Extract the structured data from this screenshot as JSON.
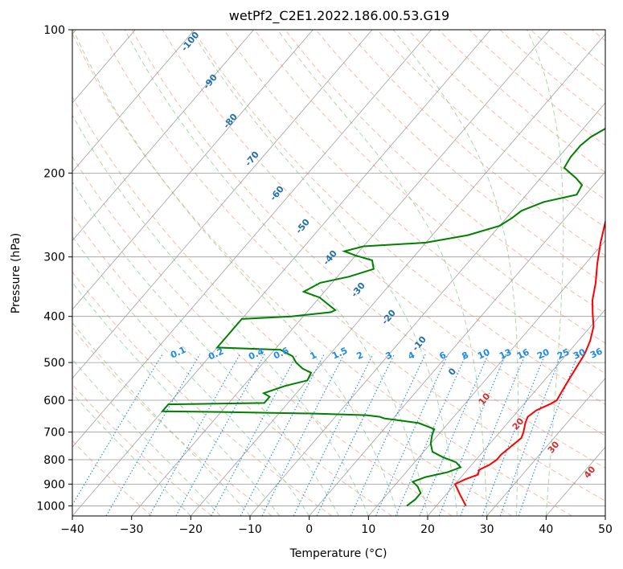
{
  "chart_data": {
    "type": "line",
    "title": "wetPf2_C2E1.2022.186.00.53.G19",
    "xlabel": "Temperature (°C)",
    "ylabel": "Pressure (hPa)",
    "xlim": [
      -40,
      50
    ],
    "ylim": [
      1050,
      100
    ],
    "y_scale": "log",
    "grid": true,
    "x_ticks": [
      -40,
      -30,
      -20,
      -10,
      0,
      10,
      20,
      30,
      40,
      50
    ],
    "y_ticks": [
      100,
      200,
      300,
      400,
      500,
      600,
      700,
      800,
      900,
      1000
    ],
    "series": [
      {
        "color": "#ff0000",
        "points": [
          [
            25.0,
            1000
          ],
          [
            22.5,
            950
          ],
          [
            20.0,
            900
          ],
          [
            21.0,
            880
          ],
          [
            22.5,
            860
          ],
          [
            22.0,
            840
          ],
          [
            23.0,
            820
          ],
          [
            23.5,
            800
          ],
          [
            23.5,
            780
          ],
          [
            24.0,
            750
          ],
          [
            24.5,
            720
          ],
          [
            24.0,
            700
          ],
          [
            23.0,
            670
          ],
          [
            22.5,
            650
          ],
          [
            23.0,
            630
          ],
          [
            24.5,
            610
          ],
          [
            25.0,
            600
          ],
          [
            24.5,
            570
          ],
          [
            24.0,
            540
          ],
          [
            23.5,
            510
          ],
          [
            23.0,
            480
          ],
          [
            22.0,
            450
          ],
          [
            20.5,
            420
          ],
          [
            18.5,
            395
          ],
          [
            16.5,
            370
          ],
          [
            14.5,
            340
          ],
          [
            12.0,
            310
          ],
          [
            9.5,
            280
          ],
          [
            7.0,
            250
          ],
          [
            5.5,
            230
          ],
          [
            4.0,
            210
          ],
          [
            2.5,
            190
          ],
          [
            1.0,
            170
          ],
          [
            0.0,
            150
          ],
          [
            -0.5,
            140
          ],
          [
            -1.0,
            130
          ],
          [
            -0.5,
            120
          ],
          [
            -0.5,
            110
          ],
          [
            0.0,
            100
          ]
        ]
      },
      {
        "color": "#008000",
        "points": [
          [
            15.0,
            1000
          ],
          [
            15.5,
            970
          ],
          [
            15.5,
            940
          ],
          [
            14.0,
            910
          ],
          [
            12.5,
            890
          ],
          [
            14.0,
            870
          ],
          [
            17.0,
            850
          ],
          [
            18.5,
            830
          ],
          [
            17.0,
            810
          ],
          [
            14.0,
            790
          ],
          [
            11.5,
            770
          ],
          [
            10.0,
            740
          ],
          [
            9.0,
            710
          ],
          [
            8.5,
            690
          ],
          [
            5.0,
            670
          ],
          [
            -1.5,
            655
          ],
          [
            -2.5,
            650
          ],
          [
            -5.0,
            645
          ],
          [
            -14.0,
            640
          ],
          [
            -30.0,
            635
          ],
          [
            -40.0,
            633
          ],
          [
            -40.0,
            612
          ],
          [
            -24.0,
            608
          ],
          [
            -24.0,
            590
          ],
          [
            -25.5,
            580
          ],
          [
            -23.0,
            560
          ],
          [
            -20.0,
            545
          ],
          [
            -20.5,
            525
          ],
          [
            -22.5,
            515
          ],
          [
            -24.5,
            500
          ],
          [
            -26.0,
            485
          ],
          [
            -29.0,
            470
          ],
          [
            -40.0,
            465
          ],
          [
            -40.0,
            405
          ],
          [
            -32.0,
            400
          ],
          [
            -26.0,
            392
          ],
          [
            -25.5,
            388
          ],
          [
            -28.0,
            375
          ],
          [
            -30.0,
            365
          ],
          [
            -33.5,
            355
          ],
          [
            -32.0,
            340
          ],
          [
            -28.0,
            330
          ],
          [
            -25.0,
            318
          ],
          [
            -26.5,
            305
          ],
          [
            -30.0,
            298
          ],
          [
            -32.5,
            292
          ],
          [
            -30.0,
            285
          ],
          [
            -20.0,
            280
          ],
          [
            -14.0,
            270
          ],
          [
            -10.0,
            258
          ],
          [
            -9.0,
            248
          ],
          [
            -8.5,
            240
          ],
          [
            -6.0,
            230
          ],
          [
            -1.5,
            222
          ],
          [
            -2.0,
            212
          ],
          [
            -4.0,
            205
          ],
          [
            -7.5,
            195
          ],
          [
            -8.0,
            185
          ],
          [
            -8.0,
            175
          ],
          [
            -7.5,
            168
          ],
          [
            -6.0,
            160
          ],
          [
            -4.0,
            152
          ],
          [
            -1.5,
            145
          ],
          [
            -1.0,
            140
          ],
          [
            -1.5,
            132
          ],
          [
            -2.0,
            125
          ],
          [
            -2.0,
            118
          ],
          [
            -1.5,
            110
          ],
          [
            -0.5,
            102
          ],
          [
            0.0,
            100
          ]
        ]
      }
    ],
    "dry_adiabat_labels": [
      "-100",
      "-90",
      "-80",
      "-70",
      "-60",
      "-50",
      "-40",
      "-30",
      "-20",
      "-10",
      "0",
      "10",
      "20",
      "30",
      "40"
    ],
    "mixing_ratio_labels": [
      "0.1",
      "0.2",
      "0.4",
      "0.6",
      "1",
      "1.5",
      "2",
      "3",
      "4",
      "6",
      "8",
      "10",
      "13",
      "16",
      "20",
      "25",
      "30",
      "36"
    ],
    "colors": {
      "temperature": "#ff0000",
      "dewpoint": "#008000",
      "isotherms": "#888888",
      "dry_adiabats": "#f0a080",
      "moist_adiabats": "#8fc88f",
      "mixing_ratio": "#1e88e5",
      "dry_label": "#1f6fa8",
      "moist_label": "#d03030",
      "mixing_label": "#1e88e5"
    }
  }
}
